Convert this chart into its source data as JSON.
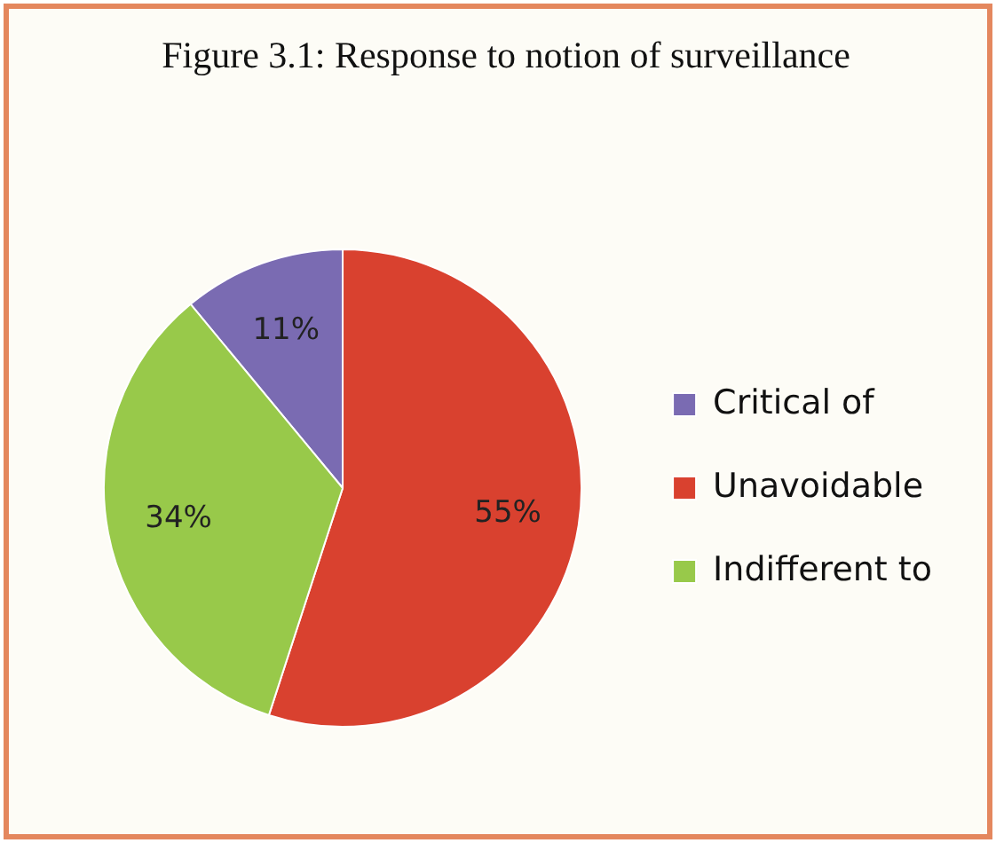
{
  "chart_data": {
    "type": "pie",
    "title": "Figure 3.1: Response to notion of surveillance",
    "categories": [
      "Critical of",
      "Unavoidable",
      "Indifferent to"
    ],
    "values": [
      11,
      55,
      34
    ],
    "value_labels": [
      "11%",
      "55%",
      "34%"
    ],
    "colors": [
      "#7a6bb2",
      "#d9412f",
      "#98c94a"
    ],
    "legend": "right"
  }
}
